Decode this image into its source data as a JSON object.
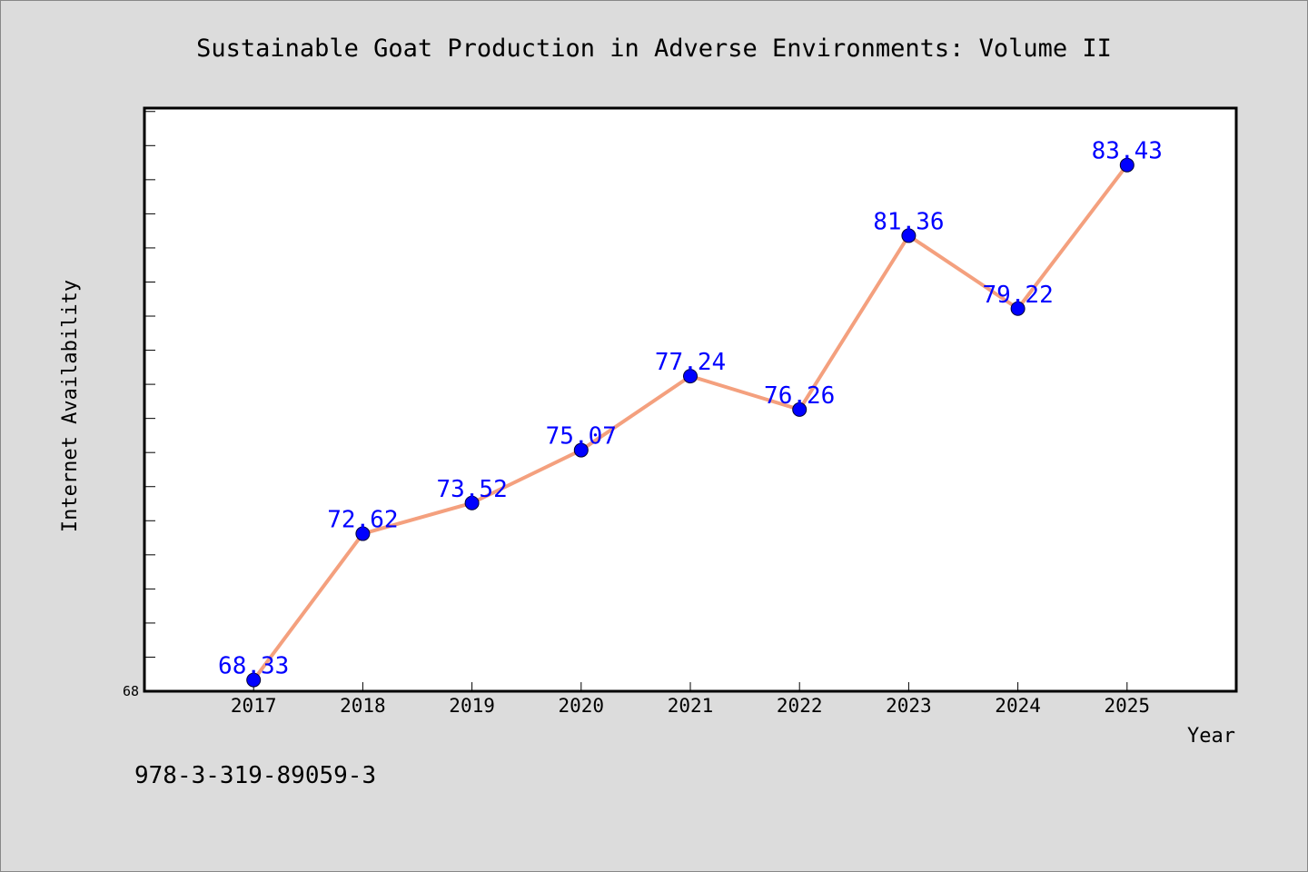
{
  "chart_data": {
    "type": "line",
    "title": "Sustainable Goat Production in Adverse Environments: Volume II",
    "xlabel": "Year",
    "ylabel": "Internet Availability",
    "categories": [
      "2017",
      "2018",
      "2019",
      "2020",
      "2021",
      "2022",
      "2023",
      "2024",
      "2025"
    ],
    "series": [
      {
        "values": [
          68.33,
          72.62,
          73.52,
          75.07,
          77.24,
          76.26,
          81.36,
          79.22,
          83.43
        ]
      }
    ],
    "data_labels": [
      "68.33",
      "72.62",
      "73.52",
      "75.07",
      "77.24",
      "76.26",
      "81.36",
      "79.22",
      "83.43"
    ],
    "y_tick_labels": [
      "68"
    ],
    "ylim": [
      68,
      85.1
    ],
    "y_minor_tick_step": 1,
    "line_color": "#f4a07e",
    "marker_color": "#0000ff",
    "label_color": "#0000ff",
    "grid": false,
    "legend": false
  },
  "footer": {
    "isbn": "978-3-319-89059-3"
  }
}
